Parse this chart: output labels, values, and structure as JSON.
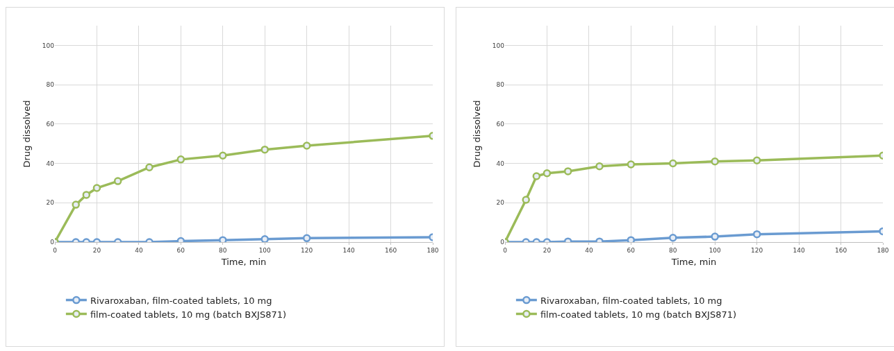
{
  "chart_data": [
    {
      "type": "line",
      "xlabel": "Time, min",
      "ylabel": "Drug dissolved",
      "x": [
        0,
        10,
        15,
        20,
        30,
        45,
        60,
        80,
        100,
        120,
        180
      ],
      "xlim": [
        0,
        180
      ],
      "xticks": [
        0,
        20,
        40,
        60,
        80,
        100,
        120,
        140,
        160,
        180
      ],
      "ylim": [
        0,
        110
      ],
      "yticks": [
        0,
        20,
        40,
        60,
        80,
        100
      ],
      "grid": true,
      "legend": "bottom",
      "marker": "circle",
      "line_style": "solid",
      "series": [
        {
          "name": "Rivaroxaban, film-coated tablets, 10 mg",
          "color": "#6a9bd1",
          "values": [
            0,
            0,
            0,
            0,
            0,
            0,
            0.5,
            1,
            1.5,
            2,
            2.5
          ]
        },
        {
          "name": "film-coated tablets, 10 mg (batch BXJS871)",
          "color": "#9bbb59",
          "values": [
            0,
            19,
            24,
            27.5,
            31,
            38,
            42,
            44,
            47,
            49,
            54
          ]
        }
      ]
    },
    {
      "type": "line",
      "xlabel": "Time, min",
      "ylabel": "Drug dissolved",
      "x": [
        0,
        10,
        15,
        20,
        30,
        45,
        60,
        80,
        100,
        120,
        180
      ],
      "xlim": [
        0,
        180
      ],
      "xticks": [
        0,
        20,
        40,
        60,
        80,
        100,
        120,
        140,
        160,
        180
      ],
      "ylim": [
        0,
        110
      ],
      "yticks": [
        0,
        20,
        40,
        60,
        80,
        100
      ],
      "grid": true,
      "legend": "bottom",
      "marker": "circle",
      "line_style": "solid",
      "series": [
        {
          "name": "Rivaroxaban, film-coated tablets, 10 mg",
          "color": "#6a9bd1",
          "values": [
            0,
            0,
            0,
            0,
            0.3,
            0.3,
            1,
            2.2,
            2.8,
            4,
            5.5
          ]
        },
        {
          "name": "film-coated tablets, 10 mg (batch BXJS871)",
          "color": "#9bbb59",
          "values": [
            0,
            21.5,
            33.5,
            35,
            36,
            38.5,
            39.5,
            40,
            41,
            41.5,
            44
          ]
        }
      ]
    }
  ]
}
